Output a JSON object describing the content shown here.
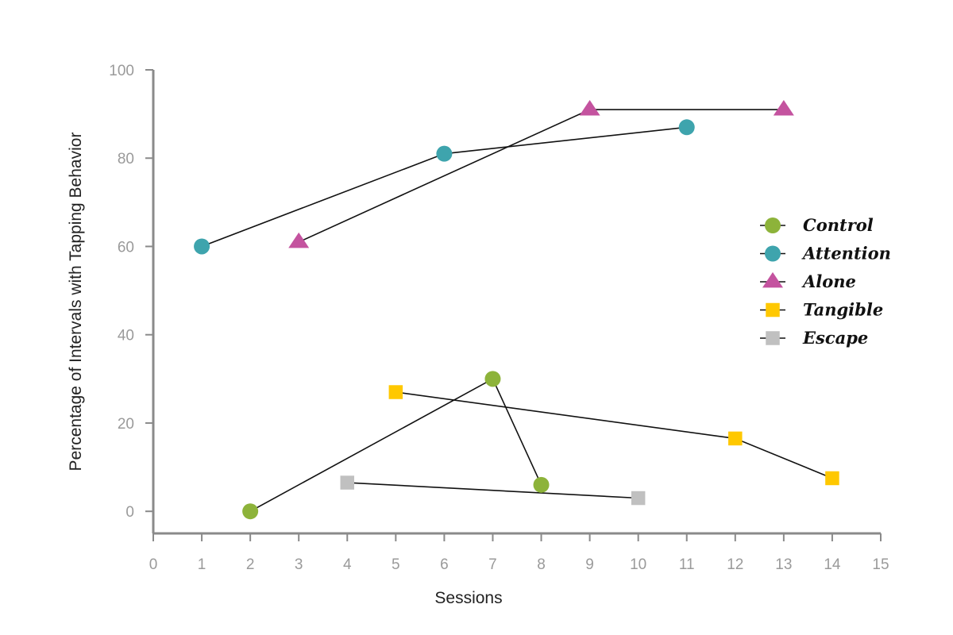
{
  "chart_data": {
    "type": "line",
    "title": "",
    "xlabel": "Sessions",
    "ylabel": "Percentage of Intervals with Tapping Behavior",
    "xlim": [
      0,
      15
    ],
    "ylim": [
      -5,
      100
    ],
    "x_ticks": [
      "0",
      "1",
      "2",
      "3",
      "4",
      "5",
      "6",
      "7",
      "8",
      "9",
      "10",
      "11",
      "12",
      "13",
      "14",
      "15"
    ],
    "y_ticks": [
      "0",
      "20",
      "40",
      "60",
      "80",
      "100"
    ],
    "grid": false,
    "legend_position": "right",
    "series": [
      {
        "name": "Control",
        "marker": "circle",
        "color": "#8db33a",
        "x": [
          2,
          7,
          8
        ],
        "y": [
          0,
          30,
          6
        ]
      },
      {
        "name": "Attention",
        "marker": "circle",
        "color": "#3ea4ad",
        "x": [
          1,
          6,
          11
        ],
        "y": [
          60,
          81,
          87
        ]
      },
      {
        "name": "Alone",
        "marker": "triangle",
        "color": "#c4539f",
        "x": [
          3,
          9,
          13
        ],
        "y": [
          61,
          91,
          91
        ]
      },
      {
        "name": "Tangible",
        "marker": "square",
        "color": "#ffc800",
        "x": [
          5,
          12,
          14
        ],
        "y": [
          27,
          16.5,
          7.5
        ]
      },
      {
        "name": "Escape",
        "marker": "square",
        "color": "#c0c0c0",
        "x": [
          4,
          10
        ],
        "y": [
          6.5,
          3
        ]
      }
    ]
  }
}
